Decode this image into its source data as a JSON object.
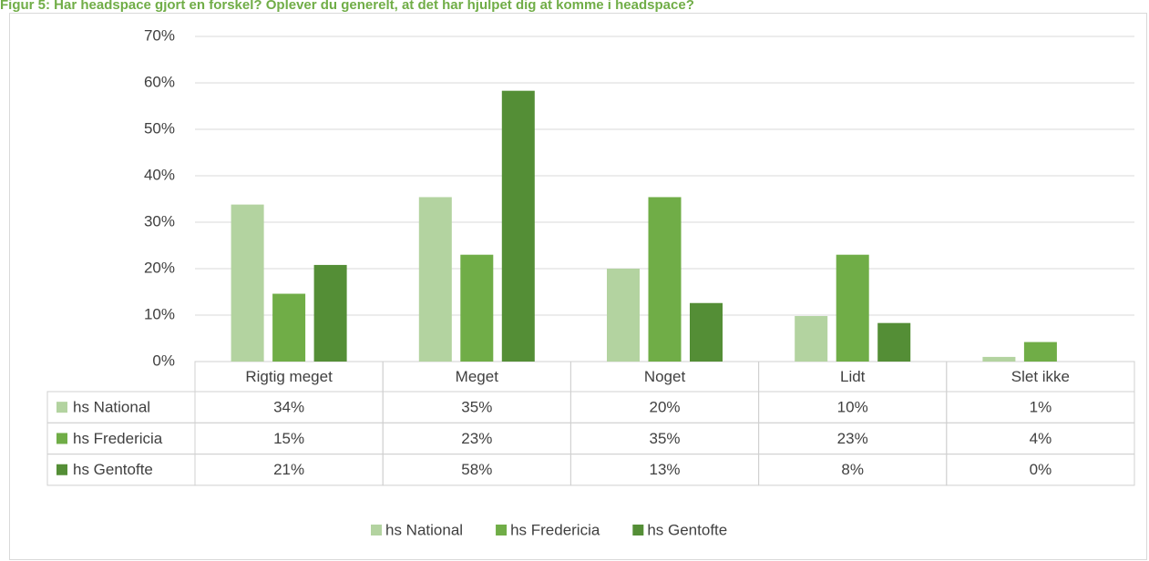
{
  "chart_data": {
    "type": "bar",
    "title": "Figur 5: Har headspace gjort en forskel? Oplever du generelt, at det har hjulpet dig at komme i headspace?",
    "categories": [
      "Rigtig meget",
      "Meget",
      "Noget",
      "Lidt",
      "Slet ikke"
    ],
    "series": [
      {
        "name": "hs National",
        "color": "#b3d3a0",
        "values": [
          33.8,
          35.4,
          20,
          9.8,
          1
        ],
        "value_labels": [
          "34%",
          "35%",
          "20%",
          "10%",
          "1%"
        ]
      },
      {
        "name": "hs Fredericia",
        "color": "#70ad47",
        "values": [
          14.6,
          23,
          35.4,
          23,
          4.2
        ],
        "value_labels": [
          "15%",
          "23%",
          "35%",
          "23%",
          "4%"
        ]
      },
      {
        "name": "hs Gentofte",
        "color": "#548e36",
        "values": [
          20.8,
          58.3,
          12.6,
          8.3,
          0
        ],
        "value_labels": [
          "21%",
          "58%",
          "13%",
          "8%",
          "0%"
        ]
      }
    ],
    "ylim": [
      0,
      70
    ],
    "yticks": [
      {
        "value": 0,
        "label": "0%"
      },
      {
        "value": 10,
        "label": "10%"
      },
      {
        "value": 20,
        "label": "20%"
      },
      {
        "value": 30,
        "label": "30%"
      },
      {
        "value": 40,
        "label": "40%"
      },
      {
        "value": 50,
        "label": "50%"
      },
      {
        "value": 60,
        "label": "60%"
      },
      {
        "value": 70,
        "label": "70%"
      }
    ],
    "grid": true,
    "legend": "bottom"
  }
}
